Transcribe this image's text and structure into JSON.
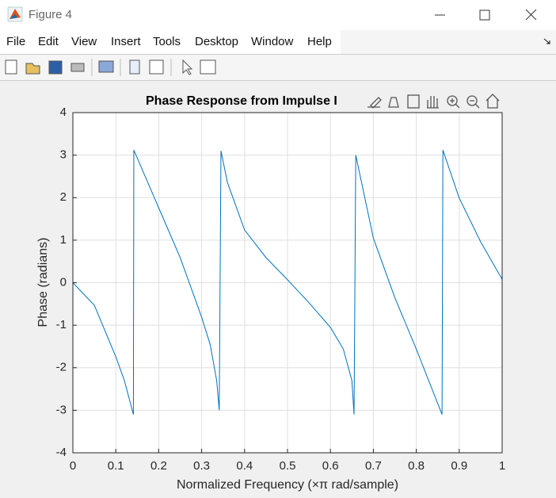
{
  "window": {
    "title": "Figure 4"
  },
  "menu": [
    "File",
    "Edit",
    "View",
    "Insert",
    "Tools",
    "Desktop",
    "Window",
    "Help"
  ],
  "chart_data": {
    "type": "line",
    "title": "Phase Response from Impulse I",
    "xlabel": "Normalized Frequency (×π rad/sample)",
    "ylabel": "Phase (radians)",
    "x": [
      0,
      0.05,
      0.1,
      0.12,
      0.13,
      0.141,
      0.142,
      0.2,
      0.25,
      0.3,
      0.32,
      0.335,
      0.341,
      0.345,
      0.36,
      0.4,
      0.45,
      0.5,
      0.55,
      0.6,
      0.63,
      0.65,
      0.655,
      0.659,
      0.7,
      0.75,
      0.8,
      0.86,
      0.862,
      0.9,
      0.95,
      1.0
    ],
    "values": [
      0,
      -0.53,
      -1.74,
      -2.3,
      -2.68,
      -3.1,
      3.12,
      1.76,
      0.59,
      -0.81,
      -1.46,
      -2.3,
      -3.0,
      3.1,
      2.36,
      1.24,
      0.59,
      0.07,
      -0.47,
      -1.05,
      -1.56,
      -2.3,
      -3.1,
      3.0,
      1.05,
      -0.35,
      -1.56,
      -3.1,
      3.12,
      1.99,
      0.96,
      0.08
    ],
    "color": "#0072bd",
    "xlim": [
      0,
      1
    ],
    "xticks": [
      0,
      0.1,
      0.2,
      0.3,
      0.4,
      0.5,
      0.6,
      0.7,
      0.8,
      0.9,
      1
    ],
    "ylim": [
      -4,
      4
    ],
    "yticks": [
      -4,
      -3,
      -2,
      -1,
      0,
      1,
      2,
      3,
      4
    ],
    "grid": true
  }
}
